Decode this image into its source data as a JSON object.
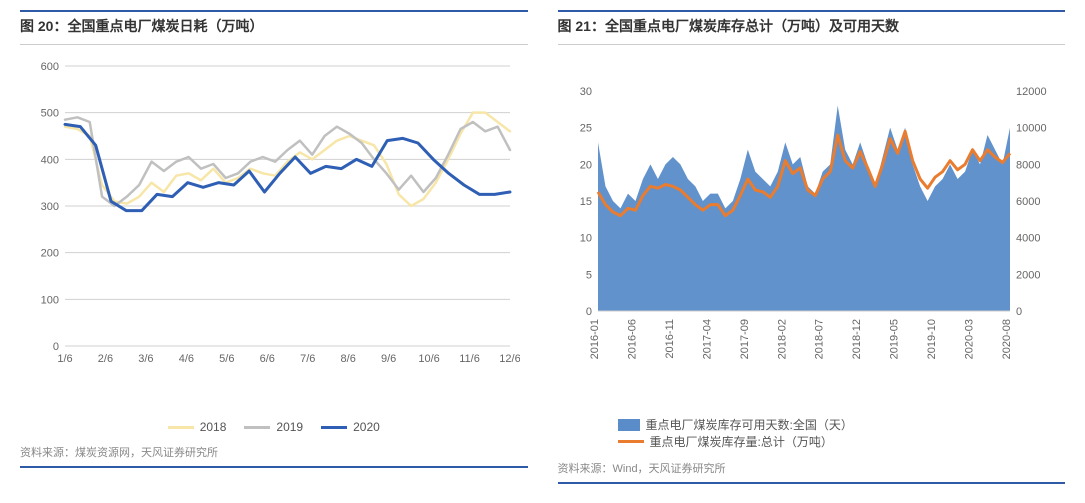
{
  "left_chart": {
    "type": "line",
    "title": "图 20：全国重点电厂煤炭日耗（万吨）",
    "source": "资料来源：煤炭资源网，天风证券研究所",
    "x_labels": [
      "1/6",
      "2/6",
      "3/6",
      "4/6",
      "5/6",
      "6/6",
      "7/6",
      "8/6",
      "9/6",
      "10/6",
      "11/6",
      "12/6"
    ],
    "y_min": 0,
    "y_max": 600,
    "y_step": 100,
    "background_color": "#ffffff",
    "axis_color": "#d0d0d0",
    "tick_font_size": 11,
    "series": [
      {
        "name": "2018",
        "color": "#f7e6a8",
        "stroke_width": 2.5,
        "data": [
          470,
          465,
          450,
          345,
          310,
          305,
          320,
          350,
          330,
          365,
          370,
          355,
          380,
          350,
          360,
          380,
          370,
          365,
          395,
          415,
          400,
          420,
          440,
          450,
          440,
          430,
          390,
          325,
          300,
          315,
          350,
          400,
          455,
          500,
          500,
          480,
          460
        ]
      },
      {
        "name": "2019",
        "color": "#c0c0c0",
        "stroke_width": 2.5,
        "data": [
          485,
          490,
          480,
          320,
          300,
          320,
          345,
          395,
          375,
          395,
          405,
          380,
          390,
          360,
          370,
          395,
          405,
          395,
          420,
          440,
          410,
          450,
          470,
          455,
          435,
          400,
          370,
          335,
          365,
          330,
          360,
          410,
          465,
          480,
          460,
          470,
          420
        ]
      },
      {
        "name": "2020",
        "color": "#2f5fb5",
        "stroke_width": 3,
        "data": [
          475,
          470,
          430,
          310,
          290,
          290,
          325,
          320,
          350,
          340,
          350,
          345,
          375,
          330,
          370,
          405,
          370,
          385,
          380,
          400,
          385,
          440,
          445,
          435,
          400,
          370,
          345,
          325,
          325,
          330
        ]
      }
    ]
  },
  "right_chart": {
    "type": "area_line_dual_axis",
    "title": "图 21：全国重点电厂煤炭库存总计（万吨）及可用天数",
    "source": "资料来源：Wind，天风证券研究所",
    "x_labels": [
      "2016-01",
      "2016-06",
      "2016-11",
      "2017-04",
      "2017-09",
      "2018-02",
      "2018-07",
      "2018-12",
      "2019-05",
      "2019-10",
      "2020-03",
      "2020-08"
    ],
    "left_axis": {
      "min": 0,
      "max": 30,
      "step": 5,
      "label": "重点电厂煤炭库存可用天数:全国（天）"
    },
    "right_axis": {
      "min": 0,
      "max": 12000,
      "step": 2000,
      "label": "重点电厂煤炭库存量:总计（万吨）"
    },
    "area_series": {
      "name": "重点电厂煤炭库存可用天数:全国（天）",
      "color": "#5a8cc9",
      "data": [
        23,
        17,
        15,
        14,
        16,
        15,
        18,
        20,
        18,
        20,
        21,
        20,
        18,
        17,
        15,
        16,
        16,
        14,
        15,
        18,
        22,
        19,
        18,
        17,
        19,
        23,
        20,
        21,
        17,
        16,
        19,
        20,
        28,
        22,
        20,
        23,
        20,
        17,
        21,
        25,
        22,
        25,
        20,
        17,
        15,
        17,
        18,
        20,
        18,
        19,
        22,
        20,
        24,
        22,
        20,
        25
      ]
    },
    "line_series": {
      "name": "重点电厂煤炭库存量:总计（万吨）",
      "color": "#e97c2f",
      "stroke_width": 3,
      "data": [
        6500,
        5800,
        5400,
        5200,
        5600,
        5500,
        6300,
        6800,
        6700,
        6900,
        6800,
        6600,
        6200,
        5800,
        5500,
        5800,
        5800,
        5200,
        5500,
        6300,
        7200,
        6600,
        6500,
        6200,
        6800,
        8200,
        7500,
        7800,
        6600,
        6300,
        7200,
        7600,
        9600,
        8200,
        7800,
        8700,
        7800,
        6800,
        8000,
        9400,
        8600,
        9800,
        8200,
        7200,
        6700,
        7300,
        7600,
        8200,
        7700,
        8000,
        8800,
        8200,
        8800,
        8400,
        8100,
        8600
      ]
    }
  }
}
